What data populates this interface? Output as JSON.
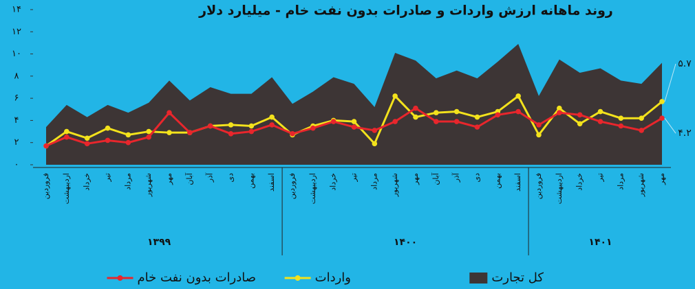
{
  "chart_data": {
    "type": "line",
    "title": "روند ماهانه ارزش واردات و صادرات بدون نفت خام - میلیارد دلار",
    "category_groups": [
      {
        "label": "۱۳۹۹",
        "categories": [
          "فروردین",
          "اردیبهشت",
          "خرداد",
          "تیر",
          "مرداد",
          "شهریور",
          "مهر",
          "آبان",
          "آذر",
          "دی",
          "بهمن",
          "اسفند"
        ]
      },
      {
        "label": "۱۴۰۰",
        "categories": [
          "فروردین",
          "اردیبهشت",
          "خرداد",
          "تیر",
          "مرداد",
          "شهریور",
          "مهر",
          "آبان",
          "آذر",
          "دی",
          "بهمن",
          "اسفند"
        ]
      },
      {
        "label": "۱۴۰۱",
        "categories": [
          "فروردین",
          "اردیبهشت",
          "خرداد",
          "تیر",
          "مرداد",
          "شهریور",
          "مهر"
        ]
      }
    ],
    "series": [
      {
        "name": "کل تجارت",
        "style": "area",
        "color": "#3d3535",
        "values": [
          3.4,
          5.4,
          4.3,
          5.4,
          4.7,
          5.6,
          7.6,
          5.8,
          7.0,
          6.4,
          6.4,
          7.9,
          5.5,
          6.6,
          7.9,
          7.3,
          5.2,
          10.1,
          9.4,
          7.8,
          8.5,
          7.8,
          9.3,
          10.9,
          6.2,
          9.5,
          8.3,
          8.7,
          7.6,
          7.3,
          9.2
        ]
      },
      {
        "name": "واردات",
        "style": "line",
        "color": "#f3e21c",
        "values": [
          1.7,
          3.0,
          2.4,
          3.3,
          2.7,
          3.0,
          2.9,
          2.9,
          3.5,
          3.6,
          3.5,
          4.3,
          2.7,
          3.5,
          4.0,
          3.9,
          1.9,
          6.2,
          4.3,
          4.7,
          4.8,
          4.3,
          4.8,
          6.2,
          2.7,
          5.1,
          3.7,
          4.8,
          4.2,
          4.2,
          5.7
        ]
      },
      {
        "name": "صادرات بدون نفت خام",
        "style": "line",
        "color": "#e8262c",
        "values": [
          1.7,
          2.5,
          1.9,
          2.2,
          2.0,
          2.5,
          4.7,
          2.9,
          3.5,
          2.8,
          3.0,
          3.6,
          2.8,
          3.3,
          3.9,
          3.4,
          3.1,
          3.9,
          5.1,
          3.9,
          3.9,
          3.4,
          4.5,
          4.8,
          3.6,
          4.7,
          4.5,
          3.9,
          3.5,
          3.1,
          4.2
        ]
      }
    ],
    "annotations": [
      {
        "text": "۵.۷",
        "series": 1
      },
      {
        "text": "۴.۲",
        "series": 2
      }
    ],
    "ylim": [
      0,
      14
    ],
    "yticks": [
      {
        "value": 0,
        "label": "۰"
      },
      {
        "value": 2,
        "label": "۲"
      },
      {
        "value": 4,
        "label": "۴"
      },
      {
        "value": 6,
        "label": "۶"
      },
      {
        "value": 8,
        "label": "۸"
      },
      {
        "value": 10,
        "label": "۱۰"
      },
      {
        "value": 12,
        "label": "۱۲"
      },
      {
        "value": 14,
        "label": "۱۴"
      }
    ]
  }
}
